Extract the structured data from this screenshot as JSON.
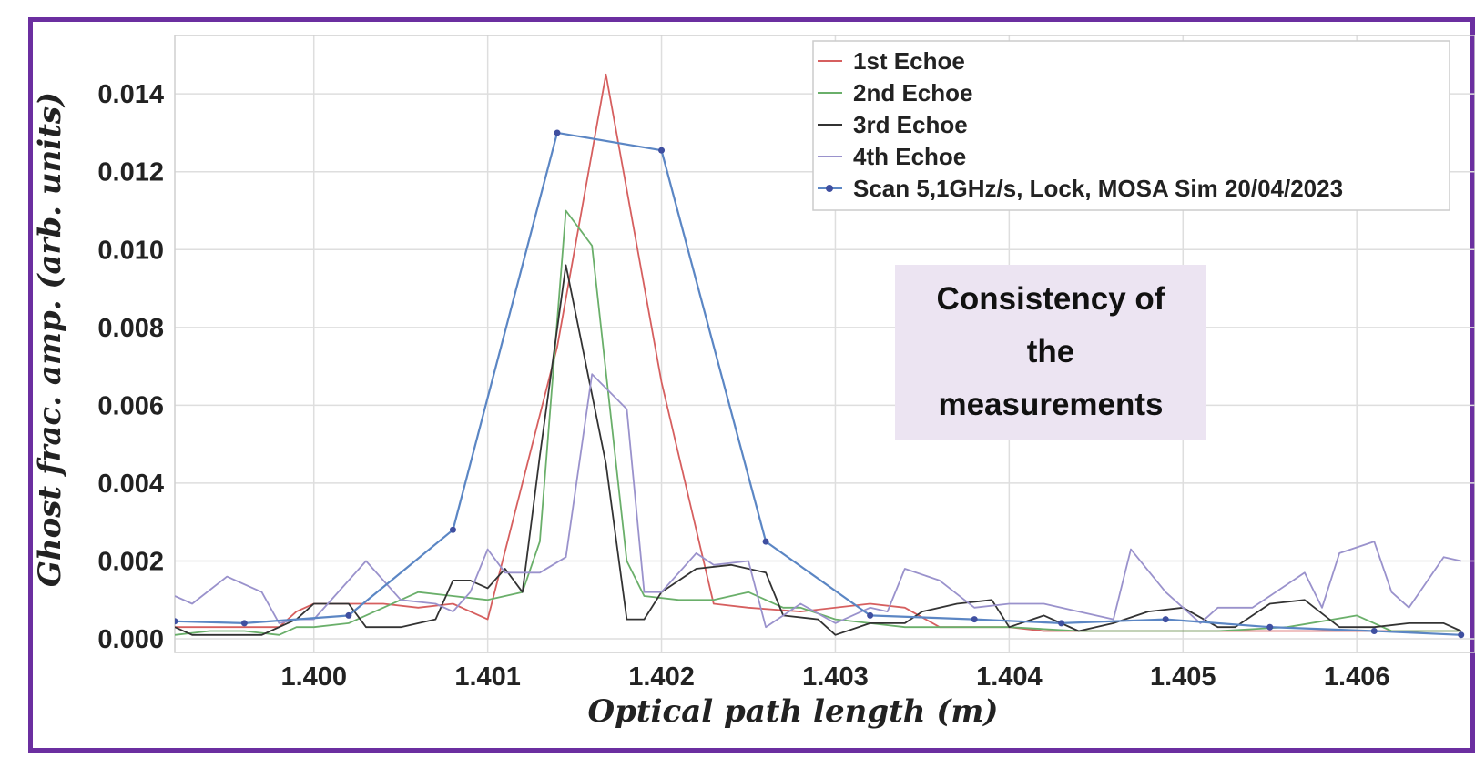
{
  "chart_data": {
    "type": "line",
    "xlabel": "Optical path length (m)",
    "ylabel": "Ghost frac. amp. (arb. units)",
    "xlim": [
      1.3992,
      1.40668
    ],
    "ylim": [
      -0.00035,
      0.0155
    ],
    "x_ticks": [
      1.4,
      1.401,
      1.402,
      1.403,
      1.404,
      1.405,
      1.406
    ],
    "x_tick_labels": [
      "1.400",
      "1.401",
      "1.402",
      "1.403",
      "1.404",
      "1.405",
      "1.406"
    ],
    "y_ticks": [
      0.0,
      0.002,
      0.004,
      0.006,
      0.008,
      0.01,
      0.012,
      0.014
    ],
    "y_tick_labels": [
      "0.000",
      "0.002",
      "0.004",
      "0.006",
      "0.008",
      "0.010",
      "0.012",
      "0.014"
    ],
    "grid": true,
    "legend_position": "top-right",
    "series": [
      {
        "name": "1st Echoe",
        "color": "#d65f5f",
        "marker": "none",
        "x": [
          1.3992,
          1.3994,
          1.3996,
          1.3998,
          1.3999,
          1.4,
          1.4002,
          1.4004,
          1.4006,
          1.4008,
          1.401,
          1.4014,
          1.40168,
          1.402,
          1.4023,
          1.4025,
          1.4028,
          1.4032,
          1.4034,
          1.4036,
          1.4038,
          1.404,
          1.4042,
          1.4044,
          1.4046,
          1.405,
          1.4054,
          1.4058,
          1.4062,
          1.4066
        ],
        "y": [
          0.0003,
          0.0003,
          0.0003,
          0.0003,
          0.0007,
          0.0009,
          0.0009,
          0.0009,
          0.0008,
          0.0009,
          0.0005,
          0.0075,
          0.0145,
          0.0066,
          0.0009,
          0.0008,
          0.0007,
          0.0009,
          0.0008,
          0.0003,
          0.0003,
          0.0003,
          0.0002,
          0.0002,
          0.0002,
          0.0002,
          0.0002,
          0.0002,
          0.0002,
          0.0002
        ]
      },
      {
        "name": "2nd Echoe",
        "color": "#6aaf6a",
        "marker": "none",
        "x": [
          1.3992,
          1.3994,
          1.3996,
          1.3998,
          1.3999,
          1.4,
          1.4002,
          1.4004,
          1.4006,
          1.4008,
          1.401,
          1.4012,
          1.4013,
          1.40145,
          1.4016,
          1.4018,
          1.4019,
          1.4021,
          1.4023,
          1.4025,
          1.4027,
          1.4028,
          1.403,
          1.4032,
          1.4034,
          1.4036,
          1.404,
          1.4044,
          1.4048,
          1.4052,
          1.4056,
          1.406,
          1.4062,
          1.4066
        ],
        "y": [
          0.0001,
          0.0002,
          0.0002,
          0.0001,
          0.0003,
          0.0003,
          0.0004,
          0.0008,
          0.0012,
          0.0011,
          0.001,
          0.0012,
          0.0025,
          0.011,
          0.0101,
          0.002,
          0.0011,
          0.001,
          0.001,
          0.0012,
          0.0008,
          0.0008,
          0.0005,
          0.0004,
          0.0003,
          0.0003,
          0.0003,
          0.0002,
          0.0002,
          0.0002,
          0.0003,
          0.0006,
          0.0002,
          0.0002
        ]
      },
      {
        "name": "3rd Echoe",
        "color": "#333333",
        "marker": "none",
        "x": [
          1.3992,
          1.3993,
          1.3995,
          1.3997,
          1.3998,
          1.3999,
          1.4,
          1.4002,
          1.4003,
          1.4005,
          1.4007,
          1.4008,
          1.4009,
          1.401,
          1.4011,
          1.4012,
          1.4013,
          1.40145,
          1.40168,
          1.4018,
          1.4019,
          1.402,
          1.4022,
          1.4024,
          1.4026,
          1.4027,
          1.4029,
          1.403,
          1.4032,
          1.4034,
          1.4035,
          1.4037,
          1.4039,
          1.404,
          1.4042,
          1.4044,
          1.4046,
          1.4048,
          1.405,
          1.4052,
          1.4053,
          1.4055,
          1.4057,
          1.4059,
          1.4061,
          1.4063,
          1.4065,
          1.4066
        ],
        "y": [
          0.0003,
          0.0001,
          0.0001,
          0.0001,
          0.0003,
          0.0005,
          0.0009,
          0.0009,
          0.0003,
          0.0003,
          0.0005,
          0.0015,
          0.0015,
          0.0013,
          0.0018,
          0.0012,
          0.0047,
          0.0096,
          0.0045,
          0.0005,
          0.0005,
          0.0012,
          0.0018,
          0.0019,
          0.0017,
          0.0006,
          0.0005,
          0.0001,
          0.0004,
          0.0004,
          0.0007,
          0.0009,
          0.001,
          0.0003,
          0.0006,
          0.0002,
          0.0004,
          0.0007,
          0.0008,
          0.0003,
          0.0003,
          0.0009,
          0.001,
          0.0003,
          0.0003,
          0.0004,
          0.0004,
          0.0002
        ]
      },
      {
        "name": "4th Echoe",
        "color": "#9a92cc",
        "marker": "none",
        "x": [
          1.3992,
          1.3993,
          1.3995,
          1.3997,
          1.3998,
          1.3999,
          1.4,
          1.4002,
          1.4003,
          1.4005,
          1.4007,
          1.4008,
          1.4009,
          1.401,
          1.4011,
          1.4012,
          1.4013,
          1.40145,
          1.4016,
          1.4018,
          1.4019,
          1.402,
          1.4022,
          1.4023,
          1.4025,
          1.4026,
          1.4028,
          1.403,
          1.4032,
          1.4033,
          1.4034,
          1.4036,
          1.4038,
          1.404,
          1.4042,
          1.4044,
          1.4046,
          1.4047,
          1.4049,
          1.4051,
          1.4052,
          1.4054,
          1.4055,
          1.4057,
          1.4058,
          1.4059,
          1.4061,
          1.4062,
          1.4063,
          1.4065,
          1.4066
        ],
        "y": [
          0.0011,
          0.0009,
          0.0016,
          0.0012,
          0.0004,
          0.0005,
          0.0005,
          0.0015,
          0.002,
          0.001,
          0.0009,
          0.0007,
          0.0012,
          0.0023,
          0.0017,
          0.0017,
          0.0017,
          0.0021,
          0.0068,
          0.0059,
          0.0012,
          0.0012,
          0.0022,
          0.0019,
          0.002,
          0.0003,
          0.0009,
          0.0004,
          0.0008,
          0.0007,
          0.0018,
          0.0015,
          0.0008,
          0.0009,
          0.0009,
          0.0007,
          0.0005,
          0.0023,
          0.0012,
          0.0004,
          0.0008,
          0.0008,
          0.0011,
          0.0017,
          0.0008,
          0.0022,
          0.0025,
          0.0012,
          0.0008,
          0.0021,
          0.002
        ]
      },
      {
        "name": "Scan 5,1GHz/s, Lock, MOSA Sim 20/04/2023",
        "color": "#5b86c4",
        "marker": "dot",
        "x": [
          1.3992,
          1.3996,
          1.4002,
          1.4008,
          1.4014,
          1.402,
          1.4026,
          1.4032,
          1.4038,
          1.4043,
          1.4049,
          1.4055,
          1.4061,
          1.4066
        ],
        "y": [
          0.00045,
          0.0004,
          0.0006,
          0.0028,
          0.013,
          0.01255,
          0.0025,
          0.0006,
          0.0005,
          0.0004,
          0.0005,
          0.0003,
          0.0002,
          0.0001
        ]
      }
    ]
  },
  "annotation": {
    "text": "Consistency of the measurements"
  }
}
